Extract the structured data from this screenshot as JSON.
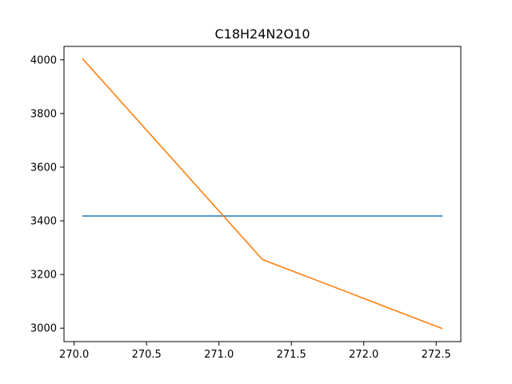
{
  "chart_data": {
    "type": "line",
    "title": "C18H24N2O10",
    "xlabel": "",
    "ylabel": "",
    "xlim": [
      269.93,
      272.67
    ],
    "ylim": [
      2950,
      4050
    ],
    "xticks": [
      270.0,
      270.5,
      271.0,
      271.5,
      272.0,
      272.5
    ],
    "xtick_labels": [
      "270.0",
      "270.5",
      "271.0",
      "271.5",
      "272.0",
      "272.5"
    ],
    "yticks": [
      3000,
      3200,
      3400,
      3600,
      3800,
      4000
    ],
    "ytick_labels": [
      "3000",
      "3200",
      "3400",
      "3600",
      "3800",
      "4000"
    ],
    "grid": false,
    "series": [
      {
        "color": "#1f77b4",
        "x": [
          270.06,
          272.54
        ],
        "y": [
          3418,
          3418
        ]
      },
      {
        "color": "#ff7f0e",
        "x": [
          270.06,
          271.3,
          272.54
        ],
        "y": [
          4003,
          3256,
          2999
        ]
      }
    ]
  }
}
